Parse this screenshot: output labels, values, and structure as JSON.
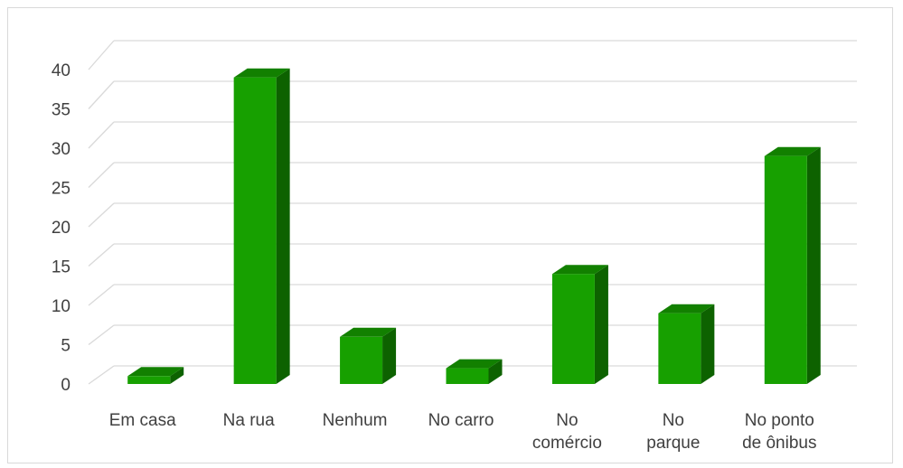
{
  "chart_data": {
    "type": "bar",
    "title": "",
    "xlabel": "",
    "ylabel": "",
    "categories": [
      [
        "Em casa"
      ],
      [
        "Na rua"
      ],
      [
        "Nenhum"
      ],
      [
        "No carro"
      ],
      [
        "No",
        "comércio"
      ],
      [
        "No",
        "parque"
      ],
      [
        "No ponto",
        "de ônibus"
      ]
    ],
    "values": [
      1,
      39,
      6,
      2,
      14,
      9,
      29
    ],
    "ylim": [
      0,
      40
    ],
    "yticks": [
      0,
      5,
      10,
      15,
      20,
      25,
      30,
      35,
      40
    ],
    "grid": true,
    "legend": "none",
    "colors": {
      "bar_front": "#17a000",
      "bar_side": "#0d6200",
      "bar_top": "#128000",
      "grid": "#d9d9d9",
      "text": "#404040"
    }
  }
}
